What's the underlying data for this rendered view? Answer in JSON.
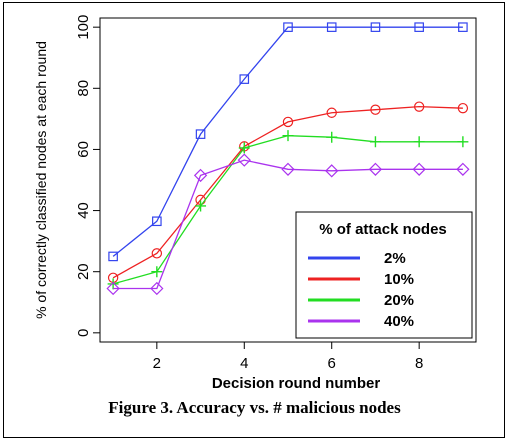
{
  "caption": "Figure 3. Accuracy vs. # malicious nodes",
  "chart_data": {
    "type": "line",
    "title": "",
    "xlabel": "Decision round number",
    "ylabel": "% of correctly classified nodes at each round",
    "x": [
      1,
      2,
      3,
      4,
      5,
      6,
      7,
      8,
      9
    ],
    "xlim": [
      0.7,
      9.3
    ],
    "ylim": [
      -3,
      103
    ],
    "xticks": [
      2,
      4,
      6,
      8
    ],
    "yticks": [
      0,
      20,
      40,
      60,
      80,
      100
    ],
    "grid": false,
    "legend": {
      "title": "% of attack nodes",
      "placement": "bottom-right"
    },
    "series": [
      {
        "name": "2%",
        "color": "#3344ee",
        "marker": "square",
        "values": [
          25,
          36.5,
          65,
          83,
          100,
          100,
          100,
          100,
          100
        ]
      },
      {
        "name": "10%",
        "color": "#ee2222",
        "marker": "circle",
        "values": [
          18,
          26,
          43.5,
          61,
          69,
          72,
          73,
          74,
          73.5
        ]
      },
      {
        "name": "20%",
        "color": "#22dd22",
        "marker": "plus",
        "values": [
          16,
          20,
          41.5,
          60.5,
          64.5,
          64,
          62.5,
          62.5,
          62.5
        ]
      },
      {
        "name": "40%",
        "color": "#aa33ee",
        "marker": "diamond",
        "values": [
          14.5,
          14.5,
          51.5,
          56.5,
          53.5,
          53,
          53.5,
          53.5,
          53.5
        ]
      }
    ]
  }
}
